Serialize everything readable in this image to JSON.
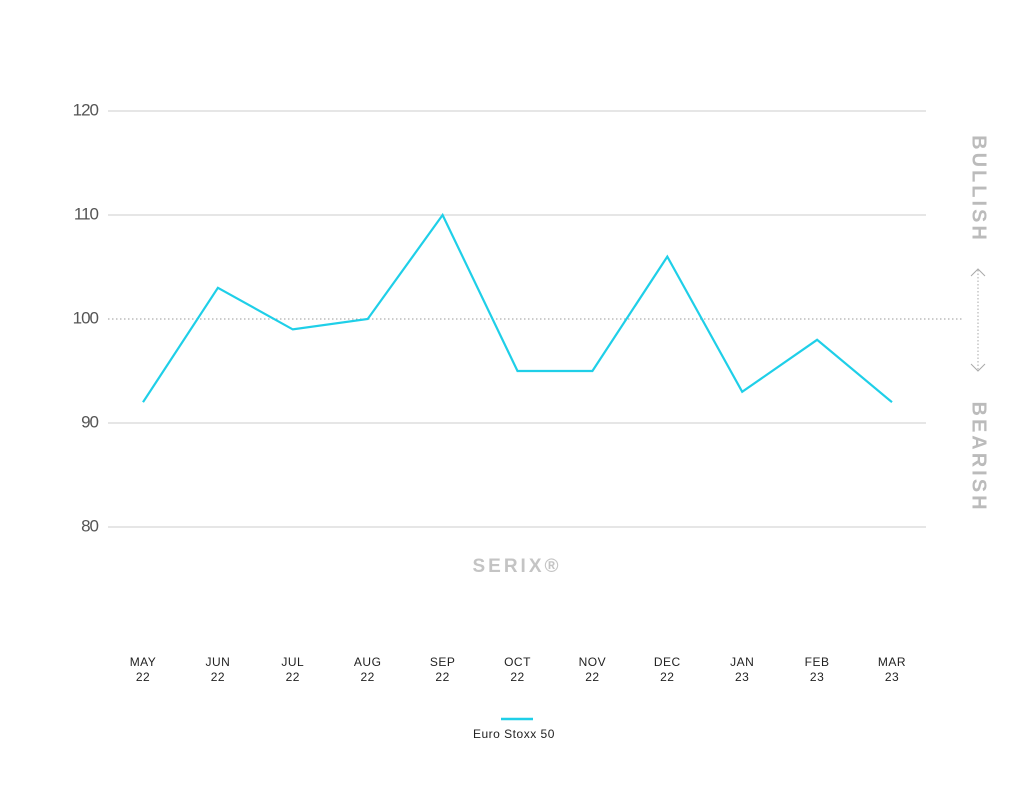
{
  "chart_data": {
    "type": "line",
    "categories": [
      "MAY 22",
      "JUN 22",
      "JUL 22",
      "AUG 22",
      "SEP 22",
      "OCT 22",
      "NOV 22",
      "DEC 22",
      "JAN 23",
      "FEB 23",
      "MAR 23"
    ],
    "series": [
      {
        "name": "Euro Stoxx 50",
        "color": "#1fcfe8",
        "values": [
          92,
          103,
          99,
          100,
          110,
          95,
          95,
          106,
          93,
          98,
          92
        ]
      }
    ],
    "ylim": [
      80,
      120
    ],
    "yticks": [
      80,
      90,
      100,
      110,
      120
    ],
    "grid": true,
    "reference_line": 100,
    "annotations": {
      "upper": "BULLISH",
      "lower": "BEARISH",
      "watermark": "SERIX®"
    },
    "legend": "bottom"
  }
}
